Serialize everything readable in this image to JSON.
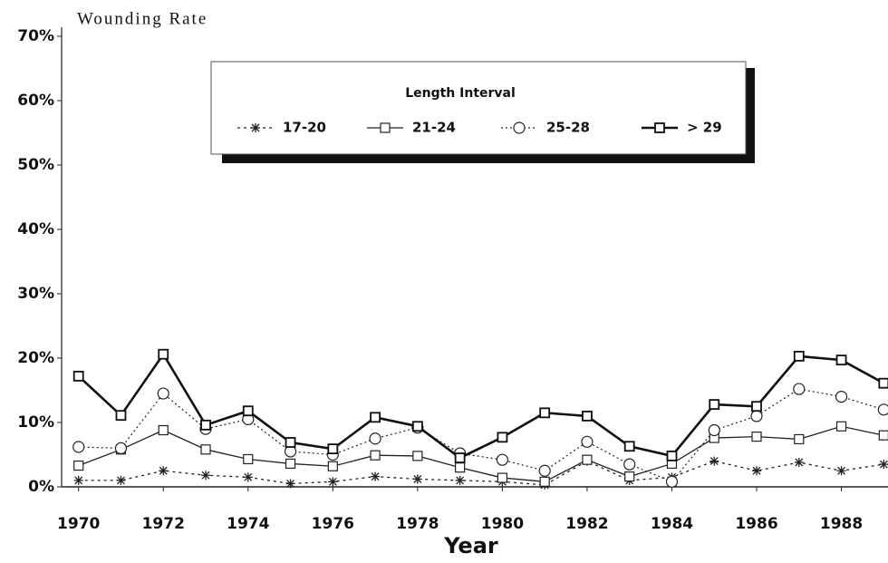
{
  "chart_data": {
    "type": "line",
    "title": "Wounding Rate",
    "x_label": "Year",
    "legend_title": "Length Interval",
    "legend_position": "top",
    "x": [
      1970,
      1971,
      1972,
      1973,
      1974,
      1975,
      1976,
      1977,
      1978,
      1979,
      1980,
      1981,
      1982,
      1983,
      1984,
      1985,
      1986,
      1987,
      1988,
      1989
    ],
    "series": [
      {
        "name": "17-20",
        "color": "#222222",
        "dash": "3 4",
        "marker": "star",
        "width": 1.3,
        "values": [
          1.0,
          1.0,
          2.5,
          1.8,
          1.5,
          0.5,
          0.8,
          1.6,
          1.2,
          1.0,
          0.8,
          0.3,
          4.0,
          1.0,
          1.5,
          4.0,
          2.5,
          3.8,
          2.5,
          3.5
        ]
      },
      {
        "name": "21-24",
        "color": "#222222",
        "dash": "none",
        "marker": "square",
        "width": 1.3,
        "values": [
          3.3,
          5.8,
          8.8,
          5.8,
          4.3,
          3.6,
          3.2,
          4.9,
          4.8,
          3.0,
          1.4,
          0.8,
          4.2,
          1.6,
          3.6,
          7.6,
          7.8,
          7.4,
          9.4,
          8.0
        ]
      },
      {
        "name": "25-28",
        "color": "#222222",
        "dash": "2 3",
        "marker": "circle",
        "width": 1.2,
        "values": [
          6.2,
          6.0,
          14.5,
          9.0,
          10.5,
          5.5,
          5.0,
          7.5,
          9.2,
          5.2,
          4.2,
          2.5,
          7.0,
          3.5,
          0.8,
          8.8,
          11.0,
          15.2,
          14.0,
          12.0
        ]
      },
      {
        "name": "> 29",
        "color": "#111111",
        "dash": "none",
        "marker": "square",
        "width": 2.6,
        "values": [
          17.2,
          11.1,
          20.6,
          9.6,
          11.8,
          6.9,
          5.9,
          10.8,
          9.4,
          4.5,
          7.7,
          11.5,
          11.0,
          6.3,
          4.8,
          12.8,
          12.5,
          20.3,
          19.7,
          16.1
        ]
      }
    ],
    "xlim": [
      1969.6,
      1989.1
    ],
    "xticks": [
      1970,
      1972,
      1974,
      1976,
      1978,
      1980,
      1982,
      1984,
      1986,
      1988
    ],
    "ylim": [
      0,
      70
    ],
    "yticks": [
      {
        "value": 0,
        "label": "0%"
      },
      {
        "value": 10,
        "label": "10%"
      },
      {
        "value": 20,
        "label": "20%"
      },
      {
        "value": 30,
        "label": "30%"
      },
      {
        "value": 40,
        "label": "40%"
      },
      {
        "value": 50,
        "label": "50%"
      },
      {
        "value": 60,
        "label": "60%"
      },
      {
        "value": 70,
        "label": "70%"
      }
    ],
    "grid": false
  }
}
